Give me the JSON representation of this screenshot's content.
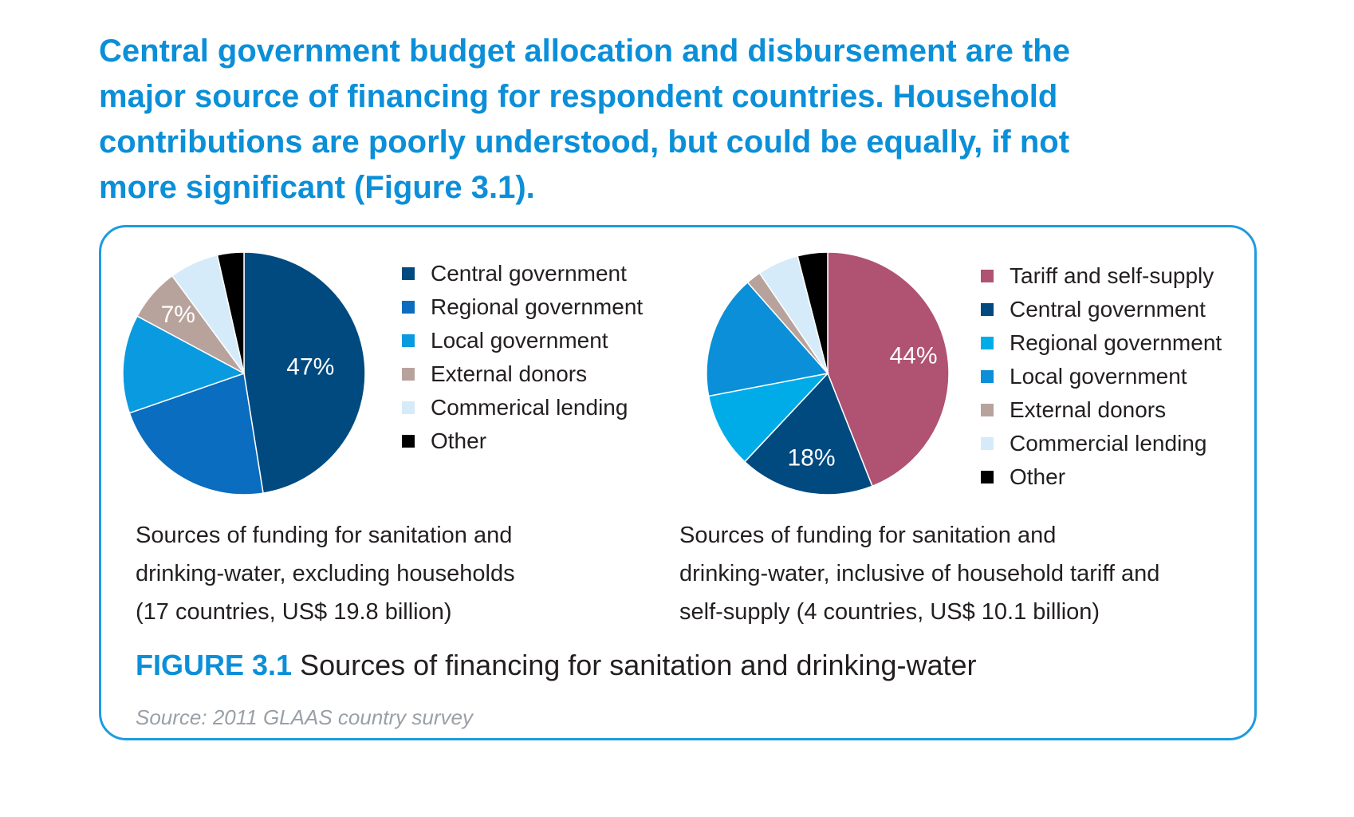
{
  "headline": {
    "lines": [
      "Central government budget allocation and disbursement are the",
      "major source of financing for respondent countries. Household",
      "contributions are poorly understood, but could be equally, if not",
      "more significant (Figure 3.1)."
    ]
  },
  "chart_data": [
    {
      "type": "pie",
      "series": [
        {
          "name": "Central government",
          "value": 47,
          "color": "#004a80",
          "label": "47%"
        },
        {
          "name": "Regional government",
          "value": 22,
          "color": "#0a6dbf",
          "label": ""
        },
        {
          "name": "Local government",
          "value": 13,
          "color": "#0a9ae0",
          "label": ""
        },
        {
          "name": "External donors",
          "value": 7,
          "color": "#b8a39c",
          "label": "7%"
        },
        {
          "name": "Commerical lending",
          "value": 6.5,
          "color": "#d5ebfa",
          "label": ""
        },
        {
          "name": "Other",
          "value": 3.5,
          "color": "#000000",
          "label": ""
        }
      ],
      "legend_placement": "right",
      "caption": [
        "Sources of funding for sanitation and",
        "drinking-water, excluding households",
        "(17 countries, US$ 19.8 billion)"
      ]
    },
    {
      "type": "pie",
      "series": [
        {
          "name": "Tariff and self-supply",
          "value": 44,
          "color": "#b05272",
          "label": "44%"
        },
        {
          "name": "Central government",
          "value": 18,
          "color": "#004a80",
          "label": "18%"
        },
        {
          "name": "Regional government",
          "value": 10,
          "color": "#00ace8",
          "label": ""
        },
        {
          "name": "Local government",
          "value": 16.5,
          "color": "#0a8fd8",
          "label": ""
        },
        {
          "name": "External donors",
          "value": 2,
          "color": "#b8a39c",
          "label": ""
        },
        {
          "name": "Commercial lending",
          "value": 5.5,
          "color": "#d5ebfa",
          "label": ""
        },
        {
          "name": "Other",
          "value": 4,
          "color": "#000000",
          "label": ""
        }
      ],
      "legend_placement": "right",
      "caption": [
        "Sources of funding for sanitation and",
        "drinking-water, inclusive of household tariff and",
        "self-supply (4 countries, US$ 10.1 billion)"
      ]
    }
  ],
  "figure": {
    "number": "FIGURE 3.1",
    "title": " Sources of financing for sanitation and drinking-water",
    "source": "Source: 2011 GLAAS country survey"
  },
  "colors": {
    "accent": "#0b8fd8",
    "panel_border": "#1e9be0"
  }
}
